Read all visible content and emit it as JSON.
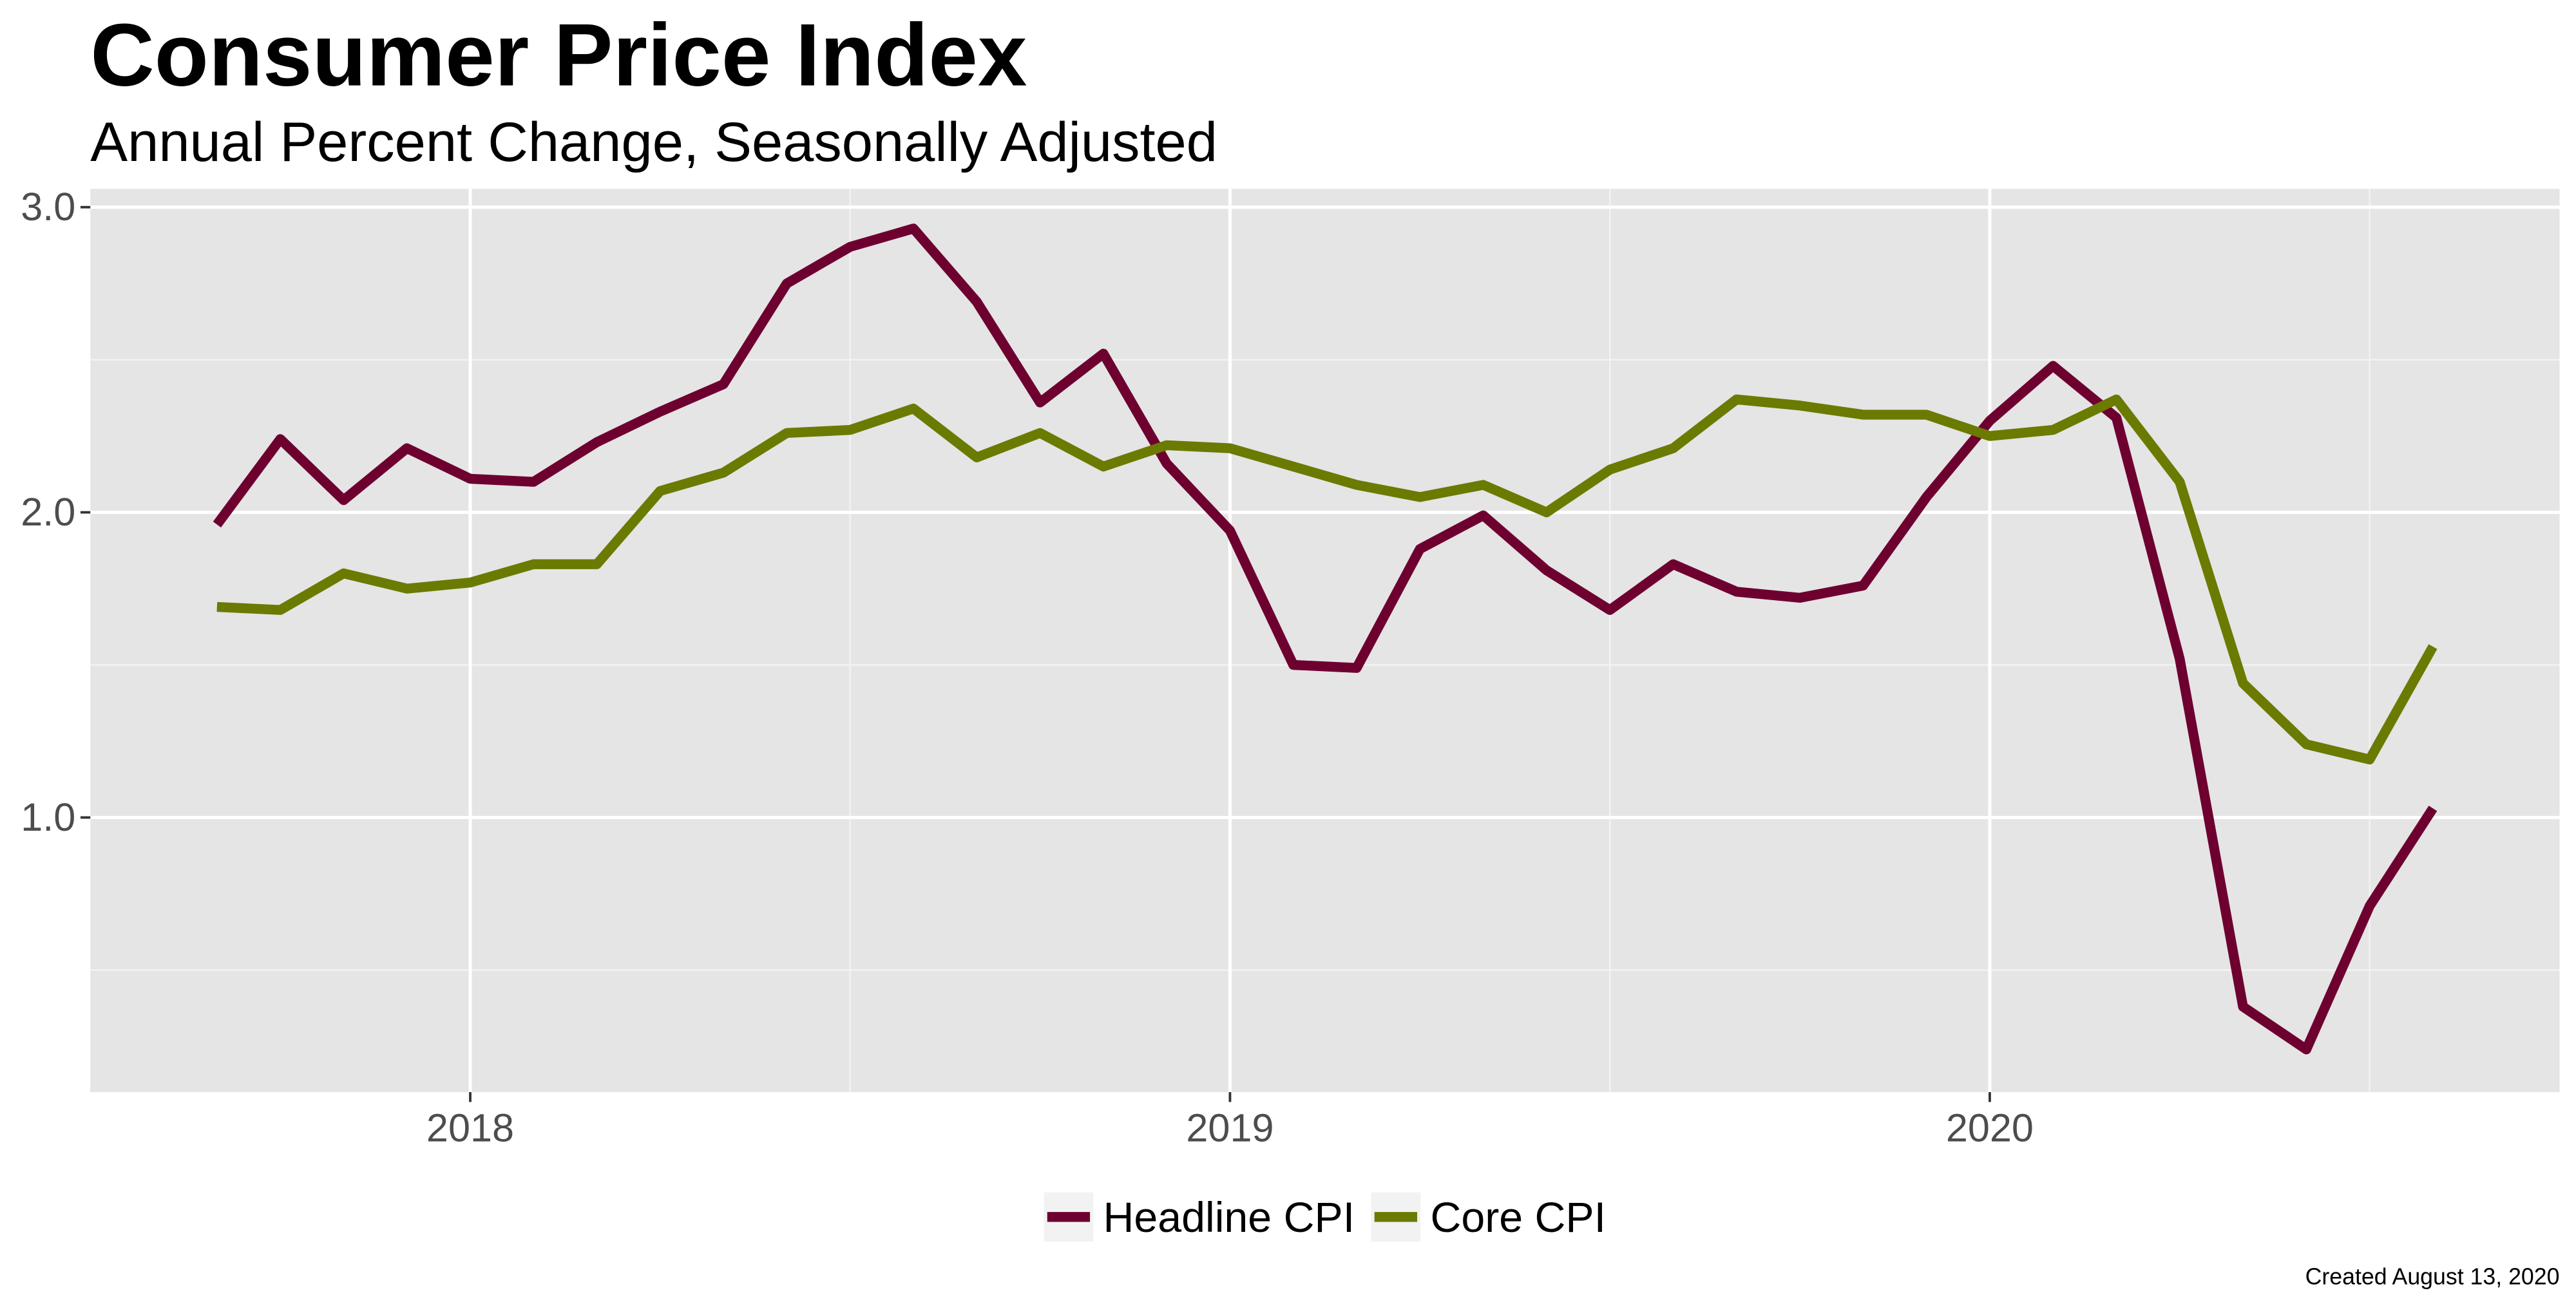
{
  "chart_data": {
    "type": "line",
    "title": "Consumer Price Index",
    "subtitle": "Annual Percent Change, Seasonally Adjusted",
    "caption": "Created August 13, 2020",
    "x": [
      "2017-09",
      "2017-10",
      "2017-11",
      "2017-12",
      "2018-01",
      "2018-02",
      "2018-03",
      "2018-04",
      "2018-05",
      "2018-06",
      "2018-07",
      "2018-08",
      "2018-09",
      "2018-10",
      "2018-11",
      "2018-12",
      "2019-01",
      "2019-02",
      "2019-03",
      "2019-04",
      "2019-05",
      "2019-06",
      "2019-07",
      "2019-08",
      "2019-09",
      "2019-10",
      "2019-11",
      "2019-12",
      "2020-01",
      "2020-02",
      "2020-03",
      "2020-04",
      "2020-05",
      "2020-06",
      "2020-07",
      "2020-08"
    ],
    "series": [
      {
        "name": "Headline CPI",
        "color": "#6e0030",
        "values": [
          1.96,
          2.24,
          2.04,
          2.21,
          2.11,
          2.1,
          2.23,
          2.33,
          2.42,
          2.75,
          2.87,
          2.93,
          2.69,
          2.36,
          2.52,
          2.16,
          1.94,
          1.5,
          1.49,
          1.88,
          1.99,
          1.81,
          1.68,
          1.83,
          1.74,
          1.72,
          1.76,
          2.05,
          2.3,
          2.48,
          2.31,
          1.52,
          0.38,
          0.24,
          0.71,
          1.03
        ]
      },
      {
        "name": "Core CPI",
        "color": "#6b7a00",
        "values": [
          1.69,
          1.68,
          1.8,
          1.75,
          1.77,
          1.83,
          1.83,
          2.07,
          2.13,
          2.26,
          2.27,
          2.34,
          2.18,
          2.26,
          2.15,
          2.22,
          2.21,
          2.15,
          2.09,
          2.05,
          2.09,
          2.0,
          2.14,
          2.21,
          2.37,
          2.35,
          2.32,
          2.32,
          2.25,
          2.27,
          2.37,
          2.1,
          1.44,
          1.24,
          1.19,
          1.56
        ]
      }
    ],
    "xlim": [
      "2017-07",
      "2020-10"
    ],
    "xticks": [
      {
        "value": "2018-01",
        "label": "2018"
      },
      {
        "value": "2019-01",
        "label": "2019"
      },
      {
        "value": "2020-01",
        "label": "2020"
      }
    ],
    "minor_xticks": [
      "2018-07",
      "2019-07",
      "2020-07"
    ],
    "ylim": [
      0.1,
      3.06
    ],
    "yticks": [
      {
        "value": 1,
        "label": "1.0"
      },
      {
        "value": 2,
        "label": "2.0"
      },
      {
        "value": 3,
        "label": "3.0"
      }
    ],
    "minor_yticks": [
      0.5,
      1.5,
      2.5
    ],
    "grid": true,
    "legend": "bottom"
  }
}
